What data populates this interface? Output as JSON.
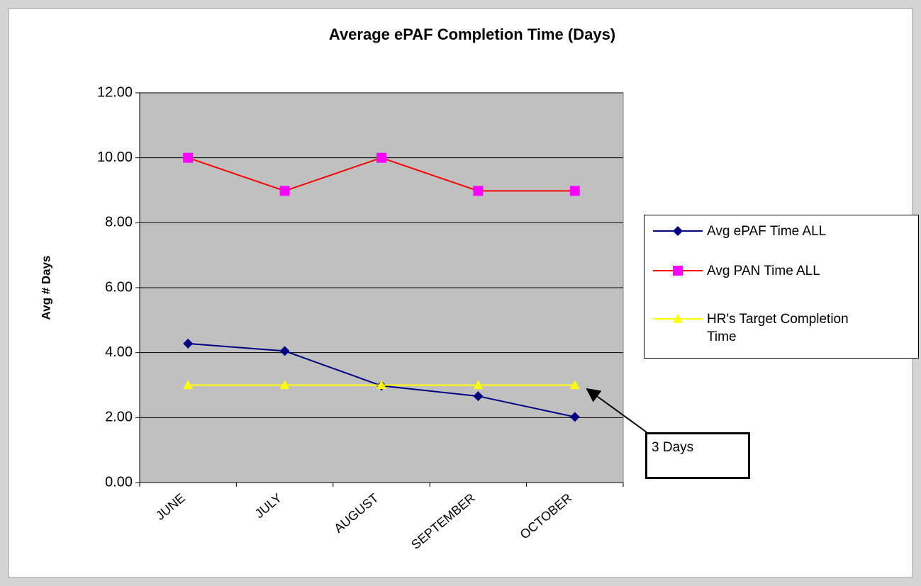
{
  "chart_data": {
    "type": "line",
    "title": "Average ePAF Completion Time (Days)",
    "y_label": "Avg # Days",
    "categories": [
      "JUNE",
      "JULY",
      "AUGUST",
      "SEPTEMBER",
      "OCTOBER"
    ],
    "series": [
      {
        "name": "Avg ePAF Time ALL",
        "color": "#000080",
        "marker": "diamond",
        "marker_color": "#000080",
        "values": [
          4.28,
          4.05,
          2.98,
          2.66,
          2.02
        ]
      },
      {
        "name": "Avg PAN Time ALL",
        "color": "#ff0000",
        "marker": "square",
        "marker_color": "#ff00ff",
        "values": [
          10,
          8.98,
          10,
          8.98,
          8.98
        ]
      },
      {
        "name": "HR's Target Completion Time",
        "color": "#ffff00",
        "marker": "triangle",
        "marker_color": "#ffff00",
        "values": [
          3,
          3,
          3,
          3,
          3
        ]
      }
    ],
    "ylim": [
      0,
      12
    ],
    "yticks": [
      {
        "value": 0,
        "label": "0.00"
      },
      {
        "value": 2,
        "label": "2.00"
      },
      {
        "value": 4,
        "label": "4.00"
      },
      {
        "value": 6,
        "label": "6.00"
      },
      {
        "value": 8,
        "label": "8.00"
      },
      {
        "value": 10,
        "label": "10.00"
      },
      {
        "value": 12,
        "label": "12.00"
      }
    ],
    "grid": true,
    "legend": "right",
    "annotation": "3 Days"
  }
}
